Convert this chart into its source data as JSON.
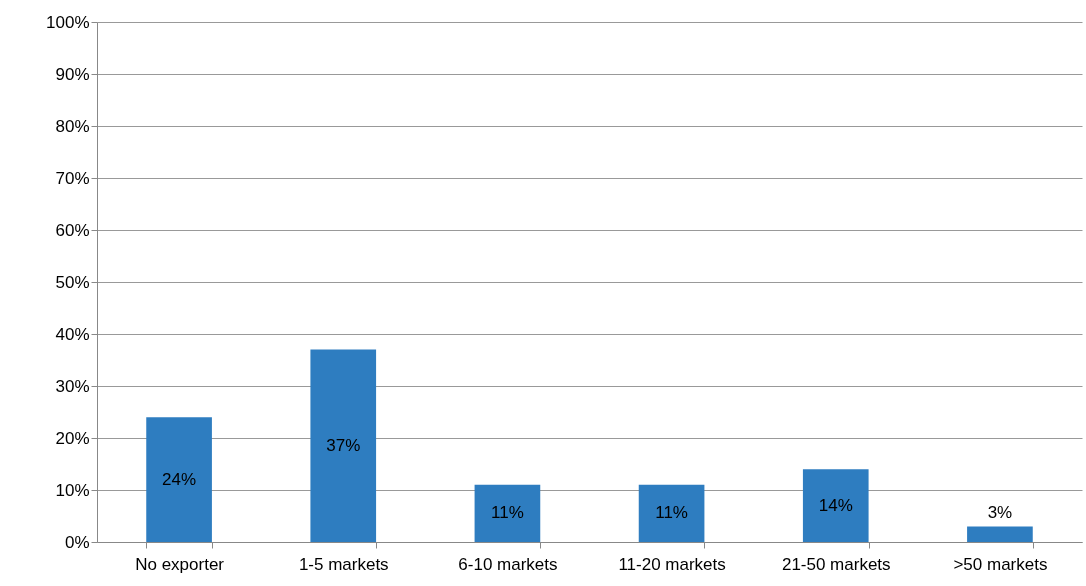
{
  "chart_data": {
    "type": "bar",
    "categories": [
      "No exporter",
      "1-5 markets",
      "6-10 markets",
      "11-20 markets",
      "21-50 markets",
      ">50 markets"
    ],
    "values": [
      24,
      37,
      11,
      11,
      14,
      3
    ],
    "value_labels": [
      "24%",
      "37%",
      "11%",
      "11%",
      "14%",
      "3%"
    ],
    "color": "#2e7dc0",
    "ylim": [
      0,
      100
    ],
    "yticks": [
      {
        "value": 0,
        "label": "0%"
      },
      {
        "value": 10,
        "label": "10%"
      },
      {
        "value": 20,
        "label": "20%"
      },
      {
        "value": 30,
        "label": "30%"
      },
      {
        "value": 40,
        "label": "40%"
      },
      {
        "value": 50,
        "label": "50%"
      },
      {
        "value": 60,
        "label": "60%"
      },
      {
        "value": 70,
        "label": "70%"
      },
      {
        "value": 80,
        "label": "80%"
      },
      {
        "value": 90,
        "label": "90%"
      },
      {
        "value": 100,
        "label": "100%"
      }
    ],
    "grid": true
  }
}
